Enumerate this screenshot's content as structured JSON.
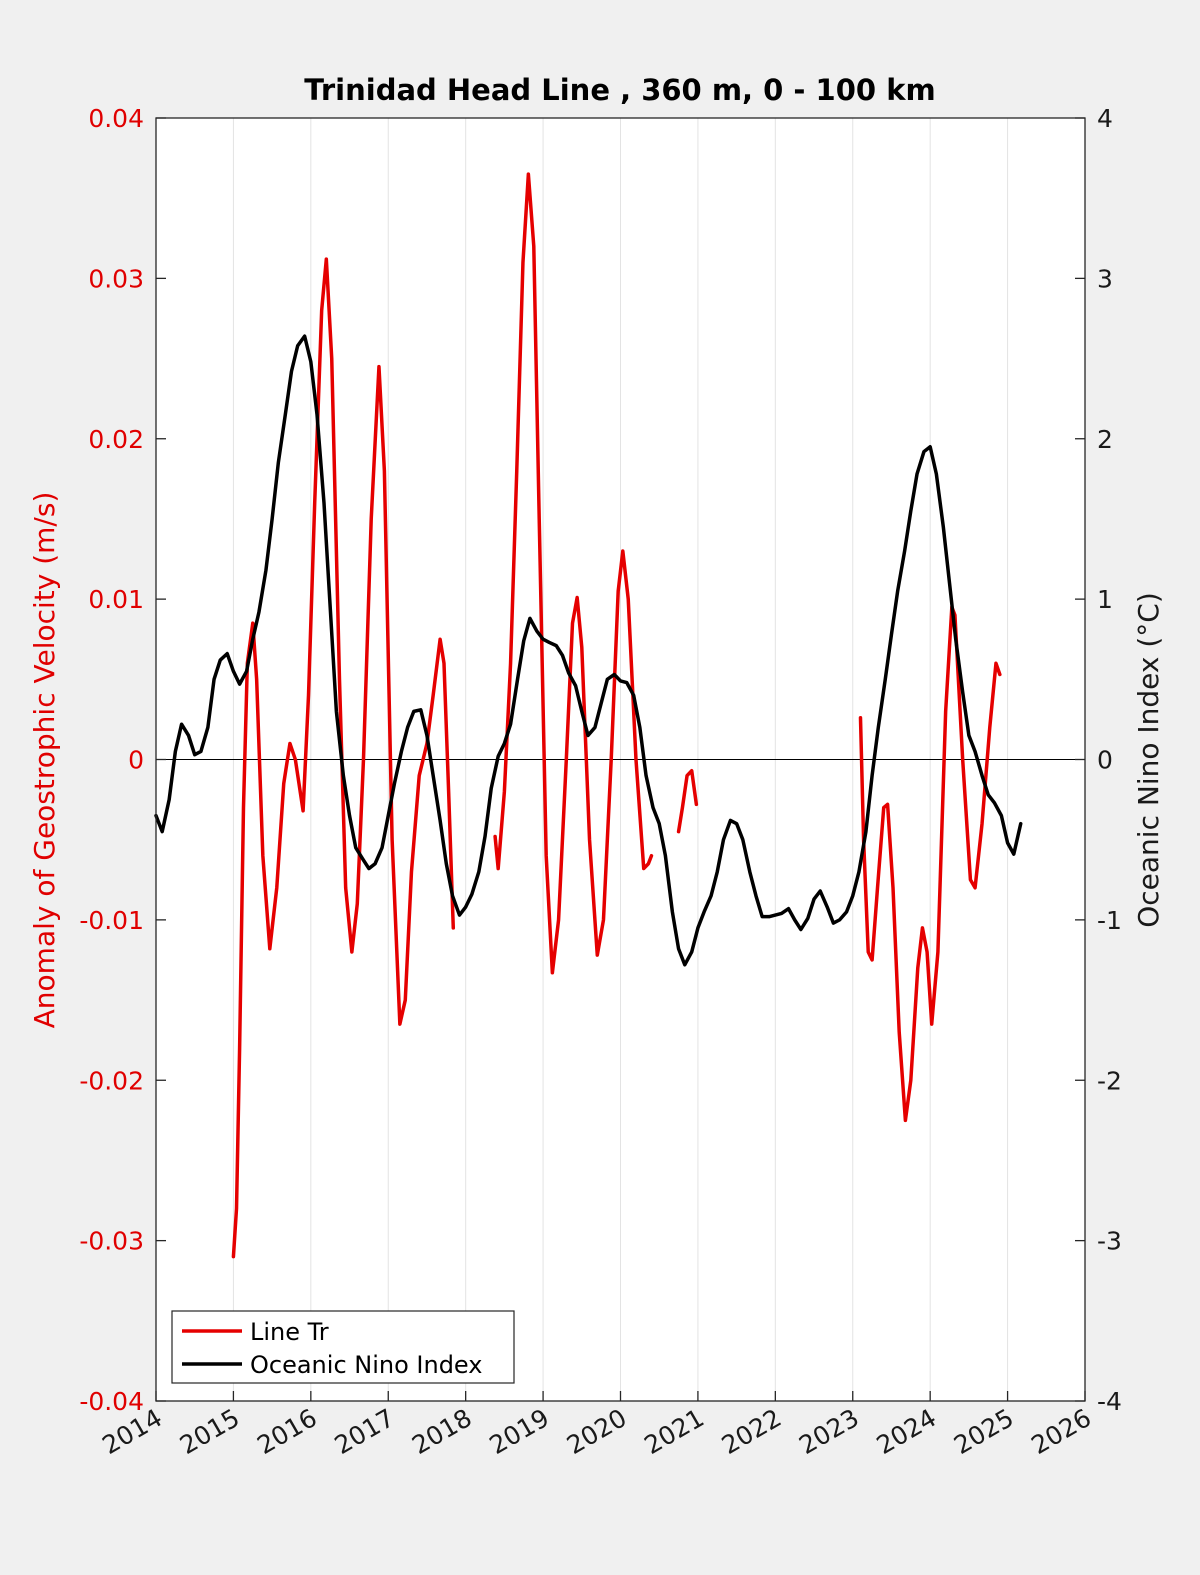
{
  "chart_data": {
    "type": "line",
    "title": "Trinidad Head Line , 360 m, 0 - 100 km",
    "ylabel_left": "Anomaly of Geostrophic Velocity (m/s)",
    "ylabel_right": "Oceanic Nino Index (°C)",
    "xlabel": "",
    "xlim": [
      2014,
      2026
    ],
    "ylim_left": [
      -0.04,
      0.04
    ],
    "ylim_right": [
      -4,
      4
    ],
    "x_ticks": [
      "2014",
      "2015",
      "2016",
      "2017",
      "2018",
      "2019",
      "2020",
      "2021",
      "2022",
      "2023",
      "2024",
      "2025",
      "2026"
    ],
    "y_ticks_left": [
      "-0.04",
      "-0.03",
      "-0.02",
      "-0.01",
      "0",
      "0.01",
      "0.02",
      "0.03",
      "0.04"
    ],
    "y_ticks_right": [
      "-4",
      "-3",
      "-2",
      "-1",
      "0",
      "1",
      "2",
      "3",
      "4"
    ],
    "grid": "vertical",
    "legend_position": "bottom-left",
    "colors": {
      "line_tr": "#e50000",
      "oni": "#000000",
      "axes_bg": "#ffffff",
      "figure_bg": "#f0f0f0"
    },
    "series": [
      {
        "name": "Line Tr",
        "axis": "left",
        "segments": [
          [
            [
              2015.0,
              -0.031
            ],
            [
              2015.04,
              -0.028
            ],
            [
              2015.08,
              -0.018
            ],
            [
              2015.13,
              -0.003
            ],
            [
              2015.18,
              0.006
            ],
            [
              2015.25,
              0.0085
            ],
            [
              2015.3,
              0.005
            ],
            [
              2015.38,
              -0.006
            ],
            [
              2015.47,
              -0.0118
            ],
            [
              2015.56,
              -0.008
            ],
            [
              2015.65,
              -0.0015
            ],
            [
              2015.73,
              0.001
            ],
            [
              2015.8,
              0.0
            ],
            [
              2015.9,
              -0.0032
            ],
            [
              2015.97,
              0.004
            ],
            [
              2016.05,
              0.016
            ],
            [
              2016.14,
              0.028
            ],
            [
              2016.2,
              0.0312
            ],
            [
              2016.27,
              0.025
            ],
            [
              2016.37,
              0.005
            ],
            [
              2016.45,
              -0.008
            ],
            [
              2016.53,
              -0.012
            ],
            [
              2016.6,
              -0.009
            ],
            [
              2016.68,
              0.0
            ],
            [
              2016.78,
              0.015
            ],
            [
              2016.88,
              0.0245
            ],
            [
              2016.95,
              0.018
            ],
            [
              2017.05,
              -0.005
            ],
            [
              2017.15,
              -0.0165
            ],
            [
              2017.22,
              -0.015
            ],
            [
              2017.3,
              -0.007
            ],
            [
              2017.4,
              -0.001
            ],
            [
              2017.5,
              0.001
            ],
            [
              2017.58,
              0.004
            ],
            [
              2017.67,
              0.0075
            ],
            [
              2017.72,
              0.006
            ],
            [
              2017.78,
              -0.002
            ],
            [
              2017.84,
              -0.0105
            ]
          ],
          [
            [
              2018.38,
              -0.0048
            ],
            [
              2018.42,
              -0.0068
            ],
            [
              2018.5,
              -0.002
            ],
            [
              2018.58,
              0.006
            ],
            [
              2018.66,
              0.018
            ],
            [
              2018.74,
              0.031
            ],
            [
              2018.81,
              0.0365
            ],
            [
              2018.88,
              0.032
            ],
            [
              2018.95,
              0.015
            ],
            [
              2019.04,
              -0.006
            ],
            [
              2019.12,
              -0.0133
            ],
            [
              2019.2,
              -0.01
            ],
            [
              2019.3,
              0.0
            ],
            [
              2019.38,
              0.0085
            ],
            [
              2019.44,
              0.0101
            ],
            [
              2019.5,
              0.007
            ],
            [
              2019.6,
              -0.005
            ],
            [
              2019.7,
              -0.0122
            ],
            [
              2019.78,
              -0.01
            ],
            [
              2019.88,
              0.0
            ],
            [
              2019.97,
              0.0105
            ],
            [
              2020.03,
              0.013
            ],
            [
              2020.1,
              0.01
            ],
            [
              2020.2,
              0.0
            ],
            [
              2020.3,
              -0.0068
            ],
            [
              2020.36,
              -0.0065
            ],
            [
              2020.4,
              -0.006
            ]
          ],
          [
            [
              2020.75,
              -0.0045
            ],
            [
              2020.8,
              -0.003
            ],
            [
              2020.86,
              -0.001
            ],
            [
              2020.92,
              -0.0007
            ],
            [
              2020.98,
              -0.0028
            ]
          ],
          [
            [
              2023.1,
              0.0026
            ],
            [
              2023.14,
              -0.005
            ],
            [
              2023.2,
              -0.012
            ],
            [
              2023.25,
              -0.0125
            ],
            [
              2023.32,
              -0.008
            ],
            [
              2023.4,
              -0.003
            ],
            [
              2023.45,
              -0.0028
            ],
            [
              2023.52,
              -0.008
            ],
            [
              2023.6,
              -0.017
            ],
            [
              2023.68,
              -0.0225
            ],
            [
              2023.75,
              -0.02
            ],
            [
              2023.84,
              -0.013
            ],
            [
              2023.9,
              -0.0105
            ],
            [
              2023.96,
              -0.012
            ],
            [
              2024.02,
              -0.0165
            ],
            [
              2024.1,
              -0.012
            ],
            [
              2024.2,
              0.003
            ],
            [
              2024.28,
              0.0095
            ],
            [
              2024.32,
              0.009
            ],
            [
              2024.42,
              0.0
            ],
            [
              2024.52,
              -0.0075
            ],
            [
              2024.58,
              -0.008
            ],
            [
              2024.67,
              -0.004
            ],
            [
              2024.77,
              0.002
            ],
            [
              2024.85,
              0.006
            ],
            [
              2024.9,
              0.0053
            ]
          ]
        ]
      },
      {
        "name": "Oceanic Nino Index",
        "axis": "right",
        "segments": [
          [
            [
              2014.0,
              -0.35
            ],
            [
              2014.08,
              -0.45
            ],
            [
              2014.17,
              -0.25
            ],
            [
              2014.25,
              0.05
            ],
            [
              2014.33,
              0.22
            ],
            [
              2014.42,
              0.15
            ],
            [
              2014.5,
              0.03
            ],
            [
              2014.58,
              0.05
            ],
            [
              2014.67,
              0.2
            ],
            [
              2014.75,
              0.5
            ],
            [
              2014.83,
              0.62
            ],
            [
              2014.92,
              0.66
            ],
            [
              2015.0,
              0.55
            ],
            [
              2015.08,
              0.47
            ],
            [
              2015.17,
              0.55
            ],
            [
              2015.25,
              0.75
            ],
            [
              2015.33,
              0.92
            ],
            [
              2015.42,
              1.18
            ],
            [
              2015.5,
              1.5
            ],
            [
              2015.58,
              1.85
            ],
            [
              2015.67,
              2.15
            ],
            [
              2015.75,
              2.42
            ],
            [
              2015.83,
              2.58
            ],
            [
              2015.92,
              2.64
            ],
            [
              2016.0,
              2.48
            ],
            [
              2016.08,
              2.15
            ],
            [
              2016.17,
              1.6
            ],
            [
              2016.25,
              0.95
            ],
            [
              2016.33,
              0.3
            ],
            [
              2016.42,
              -0.1
            ],
            [
              2016.5,
              -0.35
            ],
            [
              2016.58,
              -0.55
            ],
            [
              2016.67,
              -0.62
            ],
            [
              2016.75,
              -0.68
            ],
            [
              2016.83,
              -0.65
            ],
            [
              2016.92,
              -0.55
            ],
            [
              2017.0,
              -0.35
            ],
            [
              2017.08,
              -0.15
            ],
            [
              2017.17,
              0.05
            ],
            [
              2017.25,
              0.2
            ],
            [
              2017.33,
              0.3
            ],
            [
              2017.42,
              0.31
            ],
            [
              2017.5,
              0.15
            ],
            [
              2017.58,
              -0.1
            ],
            [
              2017.67,
              -0.38
            ],
            [
              2017.75,
              -0.65
            ],
            [
              2017.83,
              -0.85
            ],
            [
              2017.92,
              -0.97
            ],
            [
              2018.0,
              -0.92
            ],
            [
              2018.08,
              -0.84
            ],
            [
              2018.17,
              -0.7
            ],
            [
              2018.25,
              -0.48
            ],
            [
              2018.33,
              -0.18
            ],
            [
              2018.42,
              0.02
            ],
            [
              2018.5,
              0.1
            ],
            [
              2018.58,
              0.22
            ],
            [
              2018.67,
              0.5
            ],
            [
              2018.75,
              0.74
            ],
            [
              2018.83,
              0.88
            ],
            [
              2018.92,
              0.8
            ],
            [
              2019.0,
              0.75
            ],
            [
              2019.08,
              0.73
            ],
            [
              2019.17,
              0.71
            ],
            [
              2019.25,
              0.65
            ],
            [
              2019.33,
              0.54
            ],
            [
              2019.42,
              0.46
            ],
            [
              2019.5,
              0.3
            ],
            [
              2019.58,
              0.15
            ],
            [
              2019.67,
              0.2
            ],
            [
              2019.75,
              0.35
            ],
            [
              2019.83,
              0.5
            ],
            [
              2019.92,
              0.53
            ],
            [
              2020.0,
              0.49
            ],
            [
              2020.08,
              0.48
            ],
            [
              2020.17,
              0.4
            ],
            [
              2020.25,
              0.2
            ],
            [
              2020.33,
              -0.1
            ],
            [
              2020.42,
              -0.3
            ],
            [
              2020.5,
              -0.4
            ],
            [
              2020.58,
              -0.6
            ],
            [
              2020.67,
              -0.95
            ],
            [
              2020.75,
              -1.18
            ],
            [
              2020.83,
              -1.28
            ],
            [
              2020.92,
              -1.2
            ],
            [
              2021.0,
              -1.05
            ],
            [
              2021.08,
              -0.95
            ],
            [
              2021.17,
              -0.85
            ],
            [
              2021.25,
              -0.7
            ],
            [
              2021.33,
              -0.5
            ],
            [
              2021.42,
              -0.38
            ],
            [
              2021.5,
              -0.4
            ],
            [
              2021.58,
              -0.5
            ],
            [
              2021.67,
              -0.7
            ],
            [
              2021.75,
              -0.85
            ],
            [
              2021.83,
              -0.98
            ],
            [
              2021.92,
              -0.98
            ],
            [
              2022.0,
              -0.97
            ],
            [
              2022.08,
              -0.96
            ],
            [
              2022.17,
              -0.93
            ],
            [
              2022.25,
              -1.0
            ],
            [
              2022.33,
              -1.06
            ],
            [
              2022.42,
              -0.99
            ],
            [
              2022.5,
              -0.87
            ],
            [
              2022.58,
              -0.82
            ],
            [
              2022.67,
              -0.92
            ],
            [
              2022.75,
              -1.02
            ],
            [
              2022.83,
              -1.0
            ],
            [
              2022.92,
              -0.95
            ],
            [
              2023.0,
              -0.85
            ],
            [
              2023.08,
              -0.7
            ],
            [
              2023.17,
              -0.45
            ],
            [
              2023.25,
              -0.1
            ],
            [
              2023.33,
              0.2
            ],
            [
              2023.42,
              0.5
            ],
            [
              2023.5,
              0.78
            ],
            [
              2023.58,
              1.05
            ],
            [
              2023.67,
              1.3
            ],
            [
              2023.75,
              1.55
            ],
            [
              2023.83,
              1.78
            ],
            [
              2023.92,
              1.92
            ],
            [
              2024.0,
              1.95
            ],
            [
              2024.08,
              1.78
            ],
            [
              2024.17,
              1.45
            ],
            [
              2024.25,
              1.1
            ],
            [
              2024.33,
              0.75
            ],
            [
              2024.42,
              0.42
            ],
            [
              2024.5,
              0.15
            ],
            [
              2024.58,
              0.05
            ],
            [
              2024.67,
              -0.1
            ],
            [
              2024.75,
              -0.22
            ],
            [
              2024.83,
              -0.27
            ],
            [
              2024.92,
              -0.35
            ],
            [
              2025.0,
              -0.52
            ],
            [
              2025.08,
              -0.59
            ],
            [
              2025.17,
              -0.4
            ]
          ]
        ]
      }
    ]
  }
}
